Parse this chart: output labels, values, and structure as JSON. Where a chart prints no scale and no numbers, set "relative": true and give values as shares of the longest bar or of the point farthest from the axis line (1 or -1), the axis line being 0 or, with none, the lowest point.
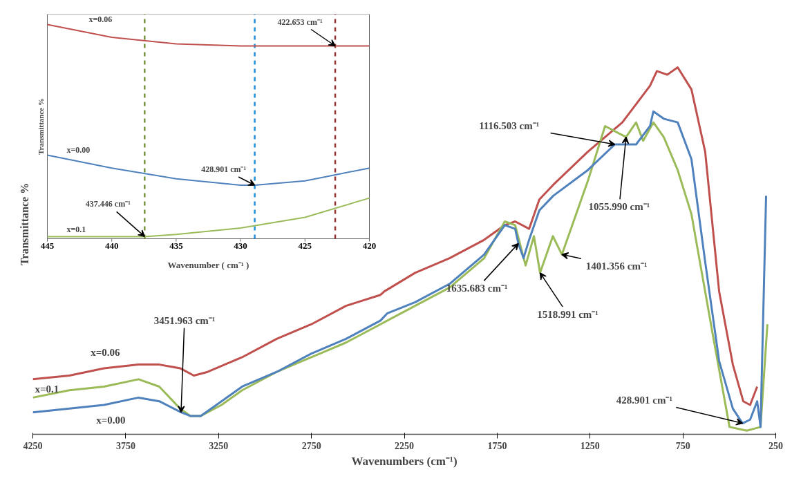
{
  "chart_data": [
    {
      "type": "line",
      "xlabel": "Wavenumbers (cm⁻¹)",
      "ylabel": "Transmittance %",
      "relative": true,
      "xlim": [
        4250,
        250
      ],
      "xticks": [
        4250,
        3750,
        3250,
        2750,
        2250,
        1750,
        1250,
        750,
        250
      ],
      "series": [
        {
          "name": "x=0.06",
          "color": "#c0504d",
          "x": [
            4250,
            4053,
            3867,
            3681,
            3569,
            3457,
            3383,
            3309,
            3123,
            2937,
            2750,
            2564,
            2378,
            2356,
            2323,
            2192,
            2006,
            1820,
            1709,
            1653,
            1578,
            1523,
            1448,
            1262,
            1076,
            927,
            890,
            834,
            778,
            704,
            630,
            555,
            481,
            425,
            388,
            350
          ],
          "values": [
            0.15,
            0.16,
            0.18,
            0.19,
            0.19,
            0.18,
            0.16,
            0.17,
            0.21,
            0.26,
            0.3,
            0.35,
            0.38,
            0.39,
            0.4,
            0.44,
            0.48,
            0.53,
            0.57,
            0.58,
            0.56,
            0.64,
            0.68,
            0.77,
            0.85,
            0.95,
            0.99,
            0.98,
            1.0,
            0.94,
            0.77,
            0.39,
            0.19,
            0.09,
            0.08,
            0.13
          ]
        },
        {
          "name": "x=0.1",
          "color": "#9bbb59",
          "x": [
            4250,
            4053,
            3867,
            3681,
            3569,
            3457,
            3402,
            3346,
            3234,
            3123,
            2937,
            2750,
            2564,
            2378,
            2341,
            2192,
            2006,
            1820,
            1709,
            1653,
            1597,
            1552,
            1518.991,
            1450,
            1401.356,
            1262,
            1169,
            1055.99,
            1002,
            964,
            909,
            853,
            778,
            704,
            592,
            499,
            406,
            332,
            295
          ],
          "values": [
            0.1,
            0.12,
            0.13,
            0.15,
            0.13,
            0.07,
            0.05,
            0.05,
            0.08,
            0.12,
            0.17,
            0.21,
            0.25,
            0.3,
            0.31,
            0.35,
            0.4,
            0.48,
            0.58,
            0.57,
            0.46,
            0.54,
            0.44,
            0.54,
            0.49,
            0.69,
            0.84,
            0.81,
            0.85,
            0.8,
            0.85,
            0.81,
            0.72,
            0.6,
            0.28,
            0.02,
            0.01,
            0.02,
            0.3
          ]
        },
        {
          "name": "x=0.00",
          "color": "#4f81bd",
          "x": [
            4250,
            4053,
            3867,
            3681,
            3569,
            3451.963,
            3402,
            3346,
            3234,
            3123,
            2937,
            2750,
            2564,
            2378,
            2341,
            2192,
            2006,
            1820,
            1709,
            1653,
            1635.683,
            1608,
            1578,
            1523,
            1448,
            1262,
            1116.503,
            1002,
            927,
            909,
            853,
            778,
            704,
            630,
            555,
            481,
            428.901,
            388,
            350,
            332,
            302
          ],
          "values": [
            0.06,
            0.07,
            0.08,
            0.1,
            0.09,
            0.06,
            0.05,
            0.05,
            0.09,
            0.13,
            0.17,
            0.22,
            0.26,
            0.31,
            0.33,
            0.36,
            0.41,
            0.49,
            0.57,
            0.56,
            0.52,
            0.48,
            0.53,
            0.61,
            0.65,
            0.72,
            0.79,
            0.79,
            0.84,
            0.88,
            0.86,
            0.85,
            0.75,
            0.47,
            0.2,
            0.07,
            0.03,
            0.04,
            0.09,
            0.02,
            0.65
          ]
        }
      ],
      "annotations": [
        {
          "text": "3451.963 cm⁻¹",
          "x": 3451.963,
          "y": 0.06
        },
        {
          "text": "1635.683 cm⁻¹",
          "x": 1635.683,
          "y": 0.52
        },
        {
          "text": "1518.991 cm⁻¹",
          "x": 1518.991,
          "y": 0.44
        },
        {
          "text": "1401.356 cm⁻¹",
          "x": 1401.356,
          "y": 0.49
        },
        {
          "text": "1116.503 cm⁻¹",
          "x": 1116.503,
          "y": 0.79
        },
        {
          "text": "1055.990 cm⁻¹",
          "x": 1055.99,
          "y": 0.81
        },
        {
          "text": "428.901 cm⁻¹",
          "x": 428.901,
          "y": 0.03
        }
      ]
    },
    {
      "type": "line",
      "xlabel": "Wavenumber ( cm⁻¹ )",
      "ylabel": "Transmittance %",
      "relative": true,
      "xlim": [
        445,
        420
      ],
      "xticks": [
        445,
        440,
        435,
        430,
        425,
        420
      ],
      "series": [
        {
          "name": "x=0.06",
          "color": "#c0504d",
          "x": [
            445,
            440,
            435,
            430,
            425,
            422.653,
            420
          ],
          "values": [
            1.0,
            0.94,
            0.91,
            0.9,
            0.9,
            0.9,
            0.9
          ]
        },
        {
          "name": "x=0.00",
          "color": "#4f81bd",
          "x": [
            445,
            440,
            435,
            430,
            428.901,
            425,
            420
          ],
          "values": [
            0.39,
            0.33,
            0.28,
            0.25,
            0.25,
            0.27,
            0.33
          ]
        },
        {
          "name": "x=0.1",
          "color": "#9bbb59",
          "x": [
            445,
            440,
            437.446,
            435,
            430,
            425,
            420
          ],
          "values": [
            0.01,
            0.01,
            0.01,
            0.02,
            0.05,
            0.1,
            0.19
          ]
        }
      ],
      "ref_lines": [
        {
          "axis": "x",
          "value": 437.446,
          "color": "#77933c",
          "line_style": "dashed"
        },
        {
          "axis": "x",
          "value": 428.901,
          "color": "#1e8fdc",
          "line_style": "dashed"
        },
        {
          "axis": "x",
          "value": 422.653,
          "color": "#943634",
          "line_style": "dashed"
        }
      ],
      "annotations": [
        {
          "text": "422.653 cm⁻¹",
          "x": 422.653,
          "y": 0.9
        },
        {
          "text": "428.901 cm⁻¹",
          "x": 428.901,
          "y": 0.25
        },
        {
          "text": "437.446 cm⁻¹",
          "x": 437.446,
          "y": 0.01
        }
      ]
    }
  ]
}
